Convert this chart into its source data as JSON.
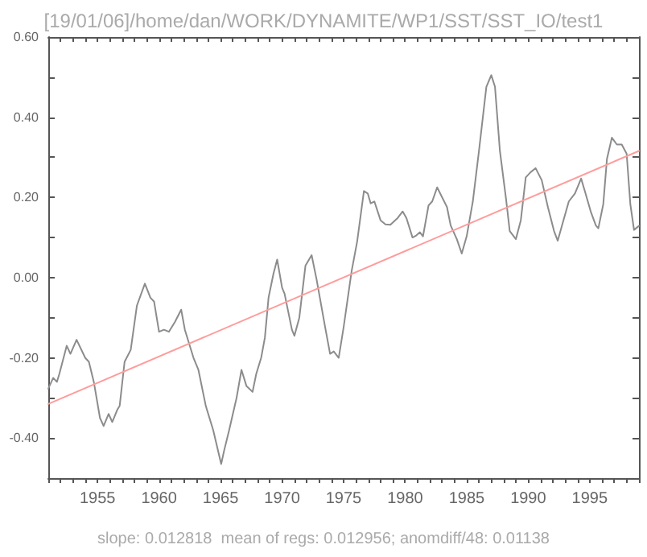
{
  "chart_data": {
    "type": "line",
    "title": "[19/01/06]/home/dan/WORK/DYNAMITE/WP1/SST/SST_IO/test1",
    "annotations": [
      "slope: 0.012818  mean of regs: 0.012956; anomdiff/48: 0.01138"
    ],
    "xlim": [
      1951,
      1999
    ],
    "ylim": [
      -0.5,
      0.6
    ],
    "xticks": [
      {
        "value": 1951,
        "label": null
      },
      {
        "value": 1952,
        "label": null
      },
      {
        "value": 1953,
        "label": null
      },
      {
        "value": 1954,
        "label": null
      },
      1955,
      {
        "value": 1956,
        "label": null
      },
      {
        "value": 1957,
        "label": null
      },
      {
        "value": 1958,
        "label": null
      },
      {
        "value": 1959,
        "label": null
      },
      1960,
      {
        "value": 1961,
        "label": null
      },
      {
        "value": 1962,
        "label": null
      },
      {
        "value": 1963,
        "label": null
      },
      {
        "value": 1964,
        "label": null
      },
      1965,
      {
        "value": 1966,
        "label": null
      },
      {
        "value": 1967,
        "label": null
      },
      {
        "value": 1968,
        "label": null
      },
      {
        "value": 1969,
        "label": null
      },
      1970,
      {
        "value": 1971,
        "label": null
      },
      {
        "value": 1972,
        "label": null
      },
      {
        "value": 1973,
        "label": null
      },
      {
        "value": 1974,
        "label": null
      },
      1975,
      {
        "value": 1976,
        "label": null
      },
      {
        "value": 1977,
        "label": null
      },
      {
        "value": 1978,
        "label": null
      },
      {
        "value": 1979,
        "label": null
      },
      1980,
      {
        "value": 1981,
        "label": null
      },
      {
        "value": 1982,
        "label": null
      },
      {
        "value": 1983,
        "label": null
      },
      {
        "value": 1984,
        "label": null
      },
      1985,
      {
        "value": 1986,
        "label": null
      },
      {
        "value": 1987,
        "label": null
      },
      {
        "value": 1988,
        "label": null
      },
      {
        "value": 1989,
        "label": null
      },
      1990,
      {
        "value": 1991,
        "label": null
      },
      {
        "value": 1992,
        "label": null
      },
      {
        "value": 1993,
        "label": null
      },
      {
        "value": 1994,
        "label": null
      },
      1995,
      {
        "value": 1996,
        "label": null
      },
      {
        "value": 1997,
        "label": null
      },
      {
        "value": 1998,
        "label": null
      },
      {
        "value": 1999,
        "label": null
      }
    ],
    "yticks": [
      {
        "value": -0.5,
        "label": null
      },
      {
        "value": -0.4,
        "label": "-0.40"
      },
      {
        "value": -0.3,
        "label": null
      },
      {
        "value": -0.2,
        "label": "-0.20"
      },
      {
        "value": -0.1,
        "label": null
      },
      {
        "value": 0,
        "label": "0.00"
      },
      {
        "value": 0.1,
        "label": null
      },
      {
        "value": 0.2,
        "label": "0.20"
      },
      {
        "value": 0.3,
        "label": null
      },
      {
        "value": 0.4,
        "label": "0.40"
      },
      {
        "value": 0.5,
        "label": null
      },
      {
        "value": 0.6,
        "label": "0.60"
      }
    ],
    "grid": false,
    "marker": "none",
    "line_style": "solid",
    "series": [
      {
        "color": "#8c8c8c",
        "x": [
          1951.0,
          1951.4,
          1951.7,
          1951.9,
          1952.5,
          1952.8,
          1953.3,
          1954.0,
          1954.3,
          1954.7,
          1955.2,
          1955.5,
          1955.9,
          1956.2,
          1956.6,
          1956.8,
          1957.2,
          1957.7,
          1958.2,
          1958.85,
          1959.3,
          1959.6,
          1960.0,
          1960.4,
          1960.8,
          1961.3,
          1961.8,
          1962.1,
          1962.8,
          1963.2,
          1963.8,
          1964.4,
          1965.05,
          1965.3,
          1965.7,
          1966.3,
          1966.7,
          1967.1,
          1967.6,
          1967.9,
          1968.3,
          1968.6,
          1968.9,
          1969.3,
          1969.6,
          1970.0,
          1970.2,
          1970.8,
          1971.0,
          1971.4,
          1971.9,
          1972.4,
          1972.8,
          1973.5,
          1973.9,
          1974.2,
          1974.6,
          1975.0,
          1975.65,
          1976.1,
          1976.65,
          1976.96,
          1977.2,
          1977.5,
          1978.0,
          1978.4,
          1978.8,
          1979.4,
          1979.8,
          1980.1,
          1980.6,
          1980.9,
          1981.2,
          1981.45,
          1981.9,
          1982.2,
          1982.6,
          1983.4,
          1983.7,
          1984.2,
          1984.6,
          1985.0,
          1985.5,
          1986.0,
          1986.6,
          1987.0,
          1987.3,
          1987.7,
          1988.2,
          1988.5,
          1989.0,
          1989.4,
          1989.8,
          1990.2,
          1990.6,
          1991.1,
          1991.6,
          1992.1,
          1992.4,
          1992.8,
          1993.3,
          1993.8,
          1994.3,
          1994.6,
          1995.1,
          1995.5,
          1995.7,
          1996.1,
          1996.4,
          1996.8,
          1997.2,
          1997.6,
          1998.0,
          1998.3,
          1998.6,
          1999.0
        ],
        "values": [
          -0.277,
          -0.25,
          -0.26,
          -0.24,
          -0.17,
          -0.19,
          -0.155,
          -0.2,
          -0.21,
          -0.26,
          -0.35,
          -0.37,
          -0.34,
          -0.36,
          -0.33,
          -0.32,
          -0.21,
          -0.18,
          -0.07,
          -0.015,
          -0.05,
          -0.06,
          -0.135,
          -0.13,
          -0.135,
          -0.11,
          -0.08,
          -0.13,
          -0.2,
          -0.23,
          -0.32,
          -0.38,
          -0.465,
          -0.43,
          -0.38,
          -0.3,
          -0.23,
          -0.27,
          -0.285,
          -0.24,
          -0.2,
          -0.15,
          -0.05,
          0.01,
          0.045,
          -0.025,
          -0.04,
          -0.13,
          -0.145,
          -0.1,
          0.03,
          0.056,
          -0.004,
          -0.124,
          -0.19,
          -0.184,
          -0.2,
          -0.124,
          0.016,
          0.09,
          0.216,
          0.21,
          0.185,
          0.19,
          0.143,
          0.133,
          0.132,
          0.149,
          0.165,
          0.149,
          0.1,
          0.105,
          0.113,
          0.103,
          0.18,
          0.19,
          0.225,
          0.176,
          0.13,
          0.096,
          0.06,
          0.103,
          0.19,
          0.316,
          0.476,
          0.505,
          0.476,
          0.316,
          0.196,
          0.116,
          0.096,
          0.143,
          0.25,
          0.263,
          0.273,
          0.243,
          0.176,
          0.116,
          0.092,
          0.136,
          0.19,
          0.21,
          0.247,
          0.216,
          0.163,
          0.13,
          0.123,
          0.183,
          0.296,
          0.349,
          0.332,
          0.332,
          0.309,
          0.183,
          0.119,
          0.129
        ]
      },
      {
        "type": "line",
        "color": "#ff9c9c",
        "x": [
          1951,
          1999
        ],
        "values": [
          -0.315,
          0.316
        ]
      }
    ]
  }
}
